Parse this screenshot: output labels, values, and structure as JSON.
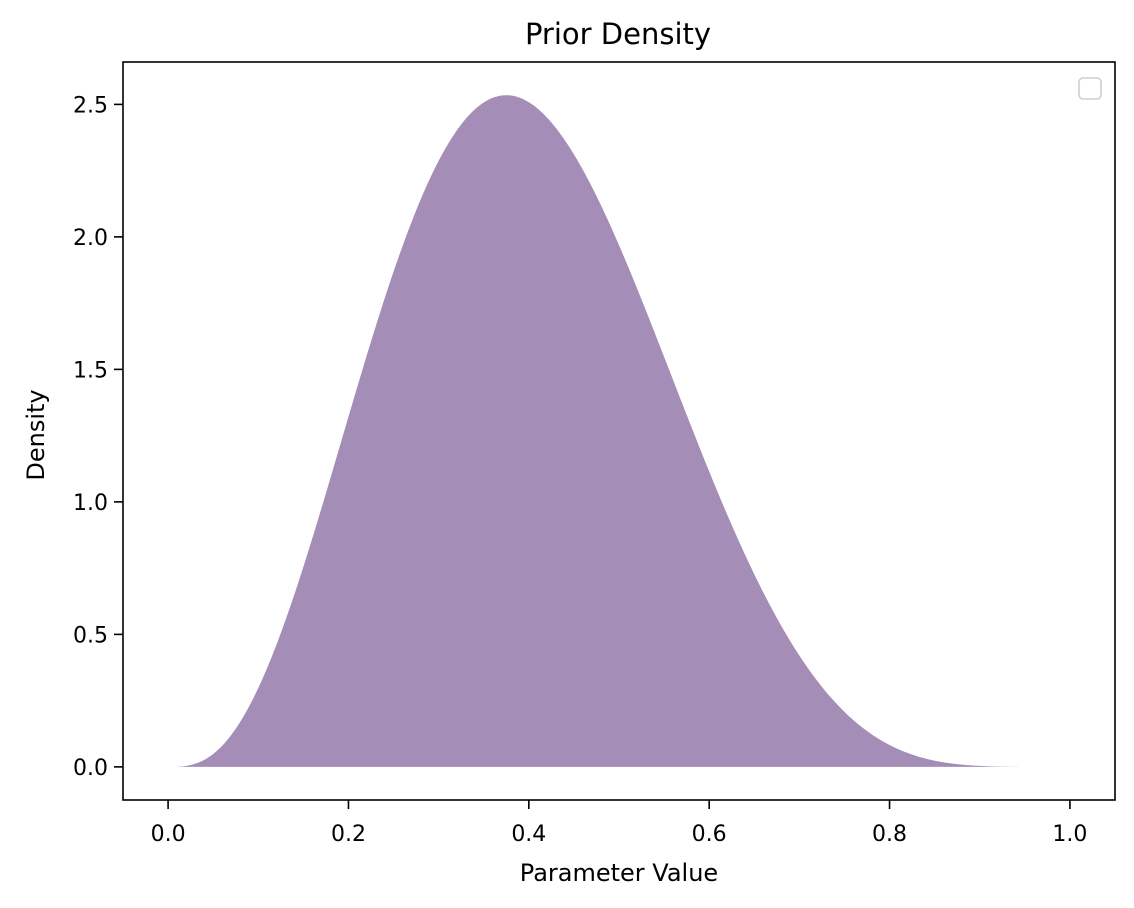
{
  "chart_data": {
    "type": "area",
    "title": "Prior Density",
    "xlabel": "Parameter Value",
    "ylabel": "Density",
    "xlim": [
      -0.05,
      1.05
    ],
    "ylim": [
      -0.125,
      2.66
    ],
    "xticks": [
      "0.0",
      "0.2",
      "0.4",
      "0.6",
      "0.8",
      "1.0"
    ],
    "yticks": [
      "0.0",
      "0.5",
      "1.0",
      "1.5",
      "2.0",
      "2.5"
    ],
    "grid": false,
    "legend": {
      "placement": "top-right",
      "entries": []
    },
    "distribution": {
      "family": "beta",
      "alpha": 4,
      "beta": 6
    },
    "x_range": [
      0.01,
      0.96
    ],
    "series": [
      {
        "color": "#a48db7"
      }
    ],
    "x": [
      0.01,
      0.05,
      0.1,
      0.15,
      0.2,
      0.25,
      0.3,
      0.35,
      0.375,
      0.4,
      0.45,
      0.5,
      0.55,
      0.6,
      0.65,
      0.7,
      0.75,
      0.8,
      0.85,
      0.9,
      0.96
    ],
    "y": [
      0.0005,
      0.052,
      0.298,
      0.762,
      1.321,
      1.835,
      2.223,
      2.455,
      2.51,
      2.508,
      2.384,
      2.109,
      1.73,
      1.306,
      0.892,
      0.536,
      0.265,
      0.098,
      0.025,
      0.003,
      0.0
    ]
  }
}
